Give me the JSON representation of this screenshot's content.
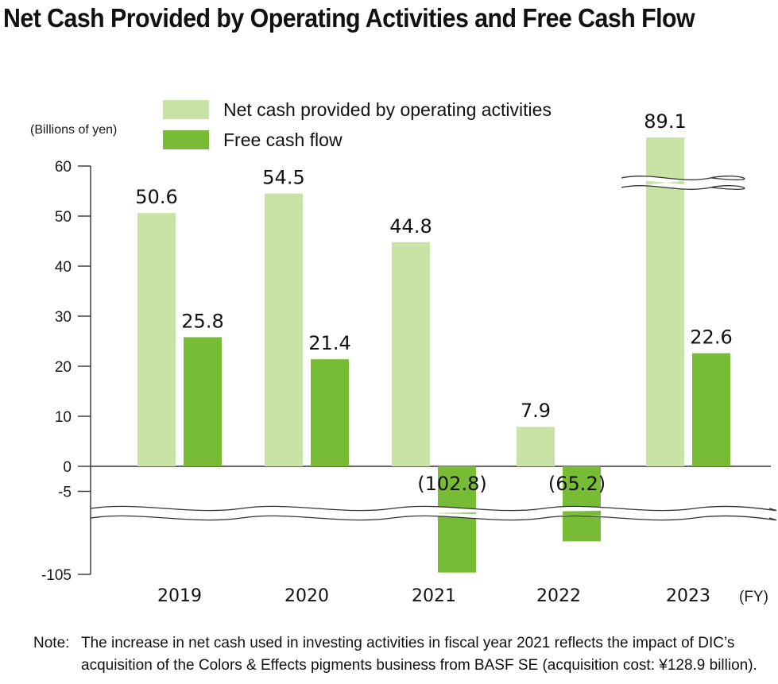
{
  "title": "Net Cash Provided by Operating Activities and Free Cash Flow",
  "note": {
    "label": "Note:",
    "lines": [
      "The increase in net cash used in investing activities in fiscal year 2021 reflects the impact of DIC’s",
      "acquisition of the Colors & Effects pigments business from BASF SE (acquisition cost: ¥128.9 billion)."
    ]
  },
  "colors": {
    "operating": "#c9e3a6",
    "free_cash_flow": "#78bc35",
    "axis": "#333333"
  },
  "chart_data": {
    "type": "bar",
    "ylabel": "(Billions of yen)",
    "xlabel": "(FY)",
    "categories": [
      "2019",
      "2020",
      "2021",
      "2022",
      "2023"
    ],
    "series": [
      {
        "name": "Net cash provided by operating activities",
        "values": [
          50.6,
          54.5,
          44.8,
          7.9,
          89.1
        ],
        "labels": [
          "50.6",
          "54.5",
          "44.8",
          "7.9",
          "89.1"
        ]
      },
      {
        "name": "Free cash flow",
        "values": [
          25.8,
          21.4,
          -102.8,
          -65.2,
          22.6
        ],
        "labels": [
          "25.8",
          "21.4",
          "(102.8)",
          "(65.2)",
          "22.6"
        ]
      }
    ],
    "yticks": [
      "60",
      "50",
      "40",
      "30",
      "20",
      "10",
      "0",
      "-5",
      "-105"
    ],
    "ylim": [
      -105,
      60
    ],
    "axis_breaks": [
      "between -5 and -105",
      "above 60 (2023 operating bar)"
    ],
    "grid": false,
    "legend_position": "top"
  }
}
